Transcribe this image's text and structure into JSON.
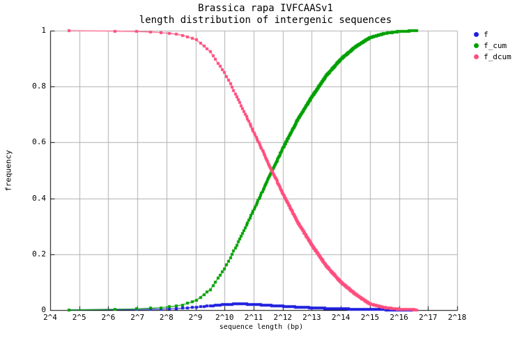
{
  "chart_data": {
    "type": "line",
    "title": "Brassica rapa IVFCAASv1",
    "subtitle": "length distribution of intergenic sequences",
    "xlabel": "sequence length (bp)",
    "ylabel": "frequency",
    "x_scale": "log2",
    "xlim_log2": [
      4,
      18
    ],
    "ylim": [
      0,
      1
    ],
    "grid": true,
    "legend_position": "outside-top-right",
    "background_color": "#ffffff",
    "grid_color": "#b0b0b0",
    "axis_color": "#000000",
    "x_ticks": [
      "2^4",
      "2^5",
      "2^6",
      "2^7",
      "2^8",
      "2^9",
      "2^10",
      "2^11",
      "2^12",
      "2^13",
      "2^14",
      "2^15",
      "2^16",
      "2^17",
      "2^18"
    ],
    "x_tick_exponents": [
      4,
      5,
      6,
      7,
      8,
      9,
      10,
      11,
      12,
      13,
      14,
      15,
      16,
      17,
      18
    ],
    "y_ticks": [
      "0",
      "0.2",
      "0.4",
      "0.6",
      "0.8",
      "1"
    ],
    "y_tick_values": [
      0,
      0.2,
      0.4,
      0.6,
      0.8,
      1
    ],
    "bins": {
      "start_bp": 25,
      "step_bp": 50,
      "end_bp": 99975
    },
    "sample_log2": [
      4.64,
      5,
      5.5,
      6,
      6.5,
      7,
      7.5,
      8,
      8.5,
      9,
      9.5,
      10,
      10.5,
      11,
      11.5,
      12,
      12.5,
      13,
      13.5,
      14,
      14.5,
      15,
      15.5,
      16,
      16.5,
      16.61
    ],
    "series": [
      {
        "name": "f",
        "color": "#2020df",
        "values": [
          0.0008,
          0.0009,
          0.0011,
          0.0013,
          0.0016,
          0.002,
          0.0028,
          0.004,
          0.006,
          0.01,
          0.015,
          0.02,
          0.022,
          0.0205,
          0.017,
          0.0138,
          0.0108,
          0.0082,
          0.006,
          0.0044,
          0.0031,
          0.0021,
          0.0013,
          0.0007,
          0.0003,
          0.0002
        ]
      },
      {
        "name": "f_cum",
        "color": "#00a000",
        "values": [
          0.0005,
          0.001,
          0.0015,
          0.002,
          0.003,
          0.0045,
          0.0065,
          0.01,
          0.017,
          0.033,
          0.072,
          0.148,
          0.248,
          0.358,
          0.468,
          0.578,
          0.678,
          0.763,
          0.839,
          0.898,
          0.942,
          0.975,
          0.99,
          0.997,
          0.9995,
          1.0
        ]
      },
      {
        "name": "f_dcum",
        "color": "#ff4d7d",
        "values": [
          1.0,
          1.0,
          0.9995,
          0.999,
          0.998,
          0.997,
          0.995,
          0.992,
          0.985,
          0.97,
          0.925,
          0.85,
          0.748,
          0.638,
          0.528,
          0.418,
          0.318,
          0.233,
          0.158,
          0.1,
          0.057,
          0.022,
          0.009,
          0.003,
          0.0013,
          0.001
        ]
      }
    ]
  }
}
